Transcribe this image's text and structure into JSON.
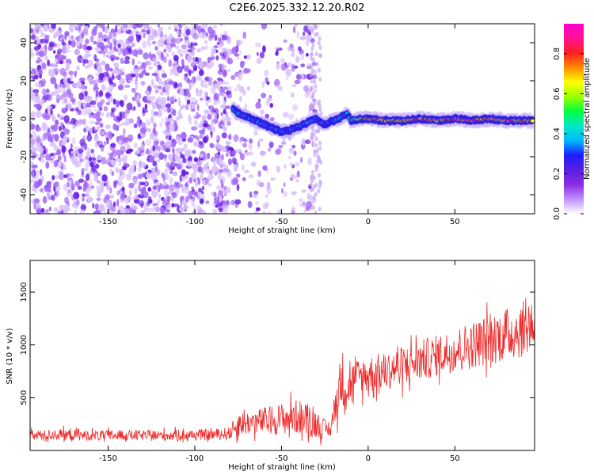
{
  "figure_title": "C2E6.2025.332.12.20.R02",
  "colors": {
    "snr_line": "#ee2a2a",
    "noise": "#7a2ef0",
    "frame": "#000000",
    "colormap": [
      "#ffffff",
      "#c090ff",
      "#8a2be2",
      "#5a1fe0",
      "#1d1dff",
      "#00b8ff",
      "#00e8c8",
      "#00ff40",
      "#9aff00",
      "#ffff00",
      "#ff8c00",
      "#ff2020",
      "#ff1493",
      "#ff00cc"
    ]
  },
  "chart_data": [
    {
      "type": "heatmap",
      "title": "",
      "xlabel": "Height of straight line (km)",
      "ylabel": "Frequency (Hz)",
      "xlim": [
        -195,
        96
      ],
      "ylim": [
        -50,
        50
      ],
      "x_ticks": [
        "-150",
        "-100",
        "-50",
        "0",
        "50"
      ],
      "x_tick_values": [
        -150,
        -100,
        -50,
        0,
        50
      ],
      "y_ticks": [
        "-40",
        "-20",
        "0",
        "20",
        "40"
      ],
      "y_tick_values": [
        -40,
        -20,
        0,
        20,
        40
      ],
      "colorbar": {
        "label": "Normalized spectral amplitude",
        "range": [
          0,
          0.95
        ],
        "ticks": [
          "0.0",
          "0.2",
          "0.4",
          "0.6",
          "0.8"
        ],
        "tick_values": [
          0.0,
          0.2,
          0.4,
          0.6,
          0.8
        ]
      },
      "noise_region": {
        "x_range": [
          -195,
          -30
        ],
        "amplitude_approx": 0.25
      },
      "ridge": {
        "x": [
          -78,
          -75,
          -70,
          -65,
          -60,
          -55,
          -50,
          -45,
          -40,
          -35,
          -30,
          -28,
          -25,
          -20,
          -15,
          -12,
          -10,
          -5,
          0,
          10,
          20,
          30,
          40,
          50,
          60,
          70,
          80,
          90,
          95
        ],
        "frequency": [
          5,
          3,
          1,
          -1,
          -3,
          -5,
          -7,
          -6,
          -4,
          -2,
          0,
          -2,
          -3,
          -1,
          1,
          3,
          -1,
          0,
          0,
          -1,
          -1,
          0,
          -1,
          0,
          -1,
          0,
          -1,
          -1,
          -1
        ],
        "amplitude": [
          0.35,
          0.3,
          0.28,
          0.3,
          0.32,
          0.3,
          0.28,
          0.3,
          0.28,
          0.3,
          0.28,
          0.2,
          0.25,
          0.3,
          0.35,
          0.4,
          0.45,
          0.6,
          0.7,
          0.75,
          0.7,
          0.78,
          0.72,
          0.8,
          0.85,
          0.8,
          0.7,
          0.75,
          0.7
        ]
      }
    },
    {
      "type": "line",
      "title": "",
      "xlabel": "Height of straight line (km)",
      "ylabel": "SNR (10 * v/v)",
      "xlim": [
        -195,
        96
      ],
      "ylim": [
        0,
        1800
      ],
      "x_ticks": [
        "-150",
        "-100",
        "-50",
        "0",
        "50"
      ],
      "x_tick_values": [
        -150,
        -100,
        -50,
        0,
        50
      ],
      "y_ticks": [
        "500",
        "1000",
        "1500"
      ],
      "y_tick_values": [
        500,
        1000,
        1500
      ],
      "series": [
        {
          "x": [
            -195,
            -180,
            -160,
            -140,
            -120,
            -100,
            -90,
            -80,
            -75,
            -70,
            -60,
            -50,
            -40,
            -30,
            -22,
            -18,
            -15,
            -12,
            -10,
            -5,
            0,
            10,
            20,
            30,
            40,
            50,
            60,
            70,
            80,
            90,
            95
          ],
          "y": [
            140,
            150,
            140,
            145,
            140,
            145,
            150,
            160,
            250,
            260,
            280,
            300,
            320,
            250,
            180,
            500,
            700,
            600,
            650,
            700,
            720,
            750,
            800,
            850,
            900,
            950,
            1000,
            1050,
            1100,
            1150,
            1200
          ],
          "spread": [
            80,
            90,
            80,
            85,
            85,
            85,
            90,
            100,
            200,
            180,
            220,
            250,
            280,
            220,
            100,
            350,
            450,
            350,
            300,
            300,
            300,
            300,
            320,
            330,
            330,
            350,
            380,
            400,
            420,
            450,
            450
          ]
        }
      ]
    }
  ]
}
